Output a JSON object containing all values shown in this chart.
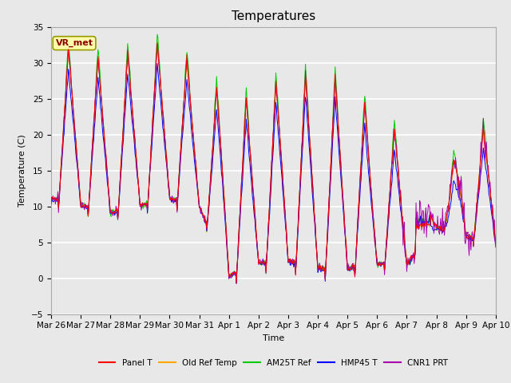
{
  "title": "Temperatures",
  "xlabel": "Time",
  "ylabel": "Temperature (C)",
  "ylim": [
    -5,
    35
  ],
  "annotation": "VR_met",
  "background_color": "#e8e8e8",
  "plot_bg_color": "#e8e8e8",
  "grid_color": "white",
  "series_colors": {
    "Panel T": "#ff0000",
    "Old Ref Temp": "#ffa500",
    "AM25T Ref": "#00cc00",
    "HMP45 T": "#0000ff",
    "CNR1 PRT": "#aa00aa"
  },
  "x_tick_labels": [
    "Mar 26",
    "Mar 27",
    "Mar 28",
    "Mar 29",
    "Mar 30",
    "Mar 31",
    "Apr 1",
    "Apr 2",
    "Apr 3",
    "Apr 4",
    "Apr 5",
    "Apr 6",
    "Apr 7",
    "Apr 8",
    "Apr 9",
    "Apr 10"
  ],
  "legend_entries": [
    "Panel T",
    "Old Ref Temp",
    "AM25T Ref",
    "HMP45 T",
    "CNR1 PRT"
  ],
  "title_fontsize": 11,
  "axis_fontsize": 8,
  "tick_fontsize": 7.5
}
